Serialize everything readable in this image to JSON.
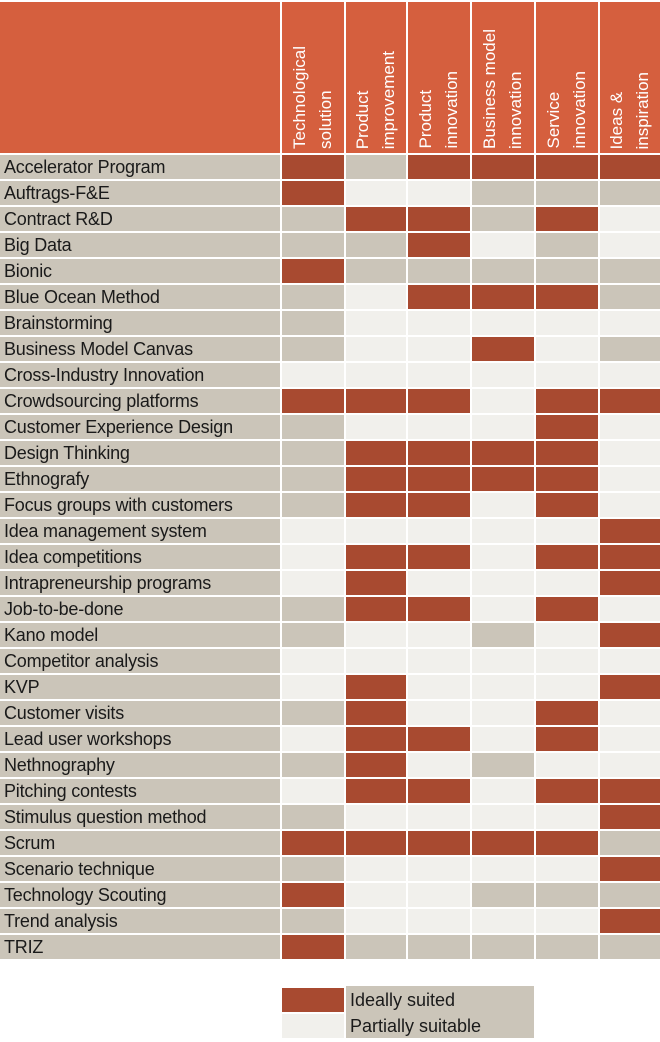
{
  "colors": {
    "header": "#d55f3e",
    "ideal": "#a84a30",
    "partial": "#f1f0ec",
    "none": "#cbc5b9"
  },
  "columns": [
    "Technological\nsolution",
    "Product\nimprovement",
    "Product\ninnovation",
    "Business model\ninnovation",
    "Service\ninnovation",
    "Ideas &\ninspiration"
  ],
  "rows": [
    {
      "label": "Accelerator Program",
      "ratings": [
        "ideal",
        "none",
        "ideal",
        "ideal",
        "ideal",
        "ideal"
      ]
    },
    {
      "label": "Auftrags-F&E",
      "ratings": [
        "ideal",
        "partial",
        "partial",
        "none",
        "none",
        "none"
      ]
    },
    {
      "label": "Contract R&D",
      "ratings": [
        "none",
        "ideal",
        "ideal",
        "none",
        "ideal",
        "partial"
      ]
    },
    {
      "label": "Big Data",
      "ratings": [
        "none",
        "none",
        "ideal",
        "partial",
        "none",
        "partial"
      ]
    },
    {
      "label": "Bionic",
      "ratings": [
        "ideal",
        "none",
        "none",
        "none",
        "none",
        "none"
      ]
    },
    {
      "label": "Blue Ocean Method",
      "ratings": [
        "none",
        "partial",
        "ideal",
        "ideal",
        "ideal",
        "none"
      ]
    },
    {
      "label": "Brainstorming",
      "ratings": [
        "none",
        "partial",
        "partial",
        "partial",
        "partial",
        "partial"
      ]
    },
    {
      "label": "Business Model Canvas",
      "ratings": [
        "none",
        "partial",
        "partial",
        "ideal",
        "partial",
        "none"
      ]
    },
    {
      "label": "Cross-Industry Innovation",
      "ratings": [
        "partial",
        "partial",
        "partial",
        "partial",
        "partial",
        "partial"
      ]
    },
    {
      "label": "Crowdsourcing platforms",
      "ratings": [
        "ideal",
        "ideal",
        "ideal",
        "partial",
        "ideal",
        "ideal"
      ]
    },
    {
      "label": "Customer Experience Design",
      "ratings": [
        "none",
        "partial",
        "partial",
        "partial",
        "ideal",
        "partial"
      ]
    },
    {
      "label": "Design Thinking",
      "ratings": [
        "none",
        "ideal",
        "ideal",
        "ideal",
        "ideal",
        "partial"
      ]
    },
    {
      "label": "Ethnografy",
      "ratings": [
        "none",
        "ideal",
        "ideal",
        "ideal",
        "ideal",
        "partial"
      ]
    },
    {
      "label": "Focus groups with customers",
      "ratings": [
        "none",
        "ideal",
        "ideal",
        "partial",
        "ideal",
        "partial"
      ]
    },
    {
      "label": "Idea management system",
      "ratings": [
        "partial",
        "partial",
        "partial",
        "partial",
        "partial",
        "ideal"
      ]
    },
    {
      "label": "Idea competitions",
      "ratings": [
        "partial",
        "ideal",
        "ideal",
        "partial",
        "ideal",
        "ideal"
      ]
    },
    {
      "label": "Intrapreneurship programs",
      "ratings": [
        "partial",
        "ideal",
        "partial",
        "partial",
        "partial",
        "ideal"
      ]
    },
    {
      "label": "Job-to-be-done",
      "ratings": [
        "none",
        "ideal",
        "ideal",
        "partial",
        "ideal",
        "partial"
      ]
    },
    {
      "label": "Kano model",
      "ratings": [
        "none",
        "partial",
        "partial",
        "none",
        "partial",
        "ideal"
      ]
    },
    {
      "label": "Competitor analysis",
      "ratings": [
        "partial",
        "partial",
        "partial",
        "partial",
        "partial",
        "partial"
      ]
    },
    {
      "label": "KVP",
      "ratings": [
        "partial",
        "ideal",
        "partial",
        "partial",
        "partial",
        "ideal"
      ]
    },
    {
      "label": "Customer visits",
      "ratings": [
        "none",
        "ideal",
        "partial",
        "partial",
        "ideal",
        "partial"
      ]
    },
    {
      "label": "Lead user workshops",
      "ratings": [
        "partial",
        "ideal",
        "ideal",
        "partial",
        "ideal",
        "partial"
      ]
    },
    {
      "label": "Nethnography",
      "ratings": [
        "none",
        "ideal",
        "partial",
        "none",
        "partial",
        "partial"
      ]
    },
    {
      "label": "Pitching contests",
      "ratings": [
        "partial",
        "ideal",
        "ideal",
        "partial",
        "ideal",
        "ideal"
      ]
    },
    {
      "label": "Stimulus question method",
      "ratings": [
        "none",
        "partial",
        "partial",
        "partial",
        "partial",
        "ideal"
      ]
    },
    {
      "label": "Scrum",
      "ratings": [
        "ideal",
        "ideal",
        "ideal",
        "ideal",
        "ideal",
        "none"
      ]
    },
    {
      "label": "Scenario technique",
      "ratings": [
        "none",
        "partial",
        "partial",
        "partial",
        "partial",
        "ideal"
      ]
    },
    {
      "label": "Technology Scouting",
      "ratings": [
        "ideal",
        "partial",
        "partial",
        "none",
        "none",
        "none"
      ]
    },
    {
      "label": "Trend analysis",
      "ratings": [
        "none",
        "partial",
        "partial",
        "partial",
        "partial",
        "ideal"
      ]
    },
    {
      "label": "TRIZ",
      "ratings": [
        "ideal",
        "none",
        "none",
        "none",
        "none",
        "none"
      ]
    }
  ],
  "legend": {
    "ideal": "Ideally suited",
    "partial": "Partially suitable"
  }
}
